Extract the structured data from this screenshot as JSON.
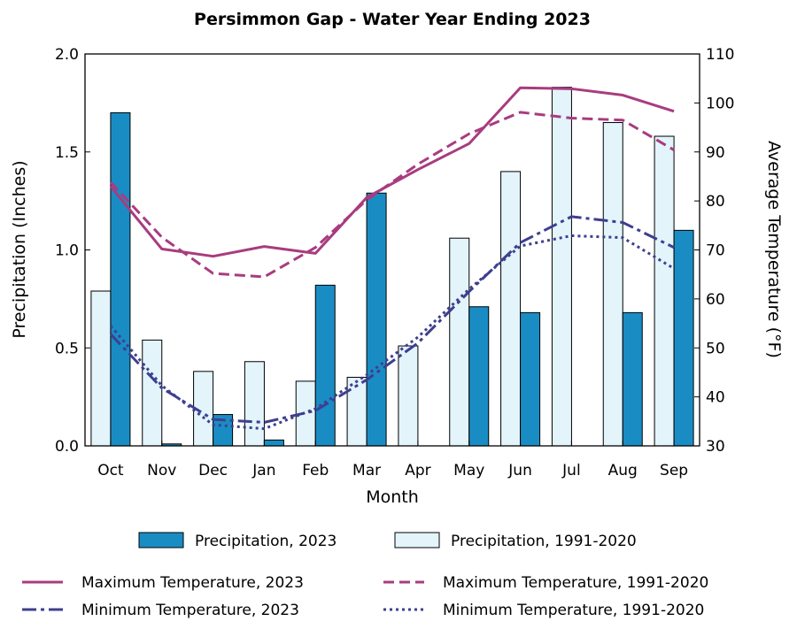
{
  "chart_data": {
    "type": "bar",
    "title": "Persimmon Gap - Water Year Ending 2023",
    "xlabel": "Month",
    "ylabel_left": "Precipitation (Inches)",
    "ylabel_right": "Average Temperature (°F)",
    "categories": [
      "Oct",
      "Nov",
      "Dec",
      "Jan",
      "Feb",
      "Mar",
      "Apr",
      "May",
      "Jun",
      "Jul",
      "Aug",
      "Sep"
    ],
    "ylim_left": [
      0,
      2.0
    ],
    "yticks_left": [
      "0.0",
      "0.5",
      "1.0",
      "1.5",
      "2.0"
    ],
    "ylim_right": [
      30,
      110
    ],
    "yticks_right": [
      "30",
      "40",
      "50",
      "60",
      "70",
      "80",
      "90",
      "100",
      "110"
    ],
    "bar_series": [
      {
        "name": "Precipitation, 1991-2020",
        "color": "#e3f4fb",
        "values": [
          0.79,
          0.54,
          0.38,
          0.43,
          0.33,
          0.35,
          0.51,
          1.06,
          1.4,
          1.83,
          1.65,
          1.58
        ]
      },
      {
        "name": "Precipitation, 2023",
        "color": "#1a8cc4",
        "values": [
          1.7,
          0.01,
          0.16,
          0.03,
          0.82,
          1.29,
          0.0,
          0.71,
          0.68,
          0.0,
          0.68,
          1.1
        ]
      }
    ],
    "line_series": [
      {
        "name": "Maximum Temperature, 2023",
        "color": "#a83c7f",
        "style": "solid",
        "values": [
          83.0,
          70.2,
          68.7,
          70.7,
          69.3,
          80.7,
          86.4,
          91.7,
          103.1,
          102.9,
          101.6,
          98.3
        ]
      },
      {
        "name": "Maximum Temperature, 1991-2020",
        "color": "#a83c7f",
        "style": "dashed",
        "values": [
          83.8,
          72.6,
          65.2,
          64.5,
          70.5,
          80.2,
          87.5,
          93.7,
          98.1,
          96.9,
          96.5,
          90.4
        ]
      },
      {
        "name": "Minimum Temperature, 2023",
        "color": "#3d3f8f",
        "style": "dashdot",
        "values": [
          52.8,
          41.8,
          35.4,
          34.8,
          37.2,
          43.5,
          51.0,
          61.5,
          71.5,
          76.8,
          75.6,
          70.5
        ]
      },
      {
        "name": "Minimum Temperature, 1991-2020",
        "color": "#3d3f8f",
        "style": "dotted",
        "values": [
          54.5,
          42.3,
          34.3,
          33.5,
          37.6,
          44.5,
          52.2,
          62.0,
          70.8,
          72.9,
          72.5,
          66.2
        ]
      }
    ],
    "legend": {
      "placement": "bottom",
      "items": [
        {
          "label": "Precipitation, 2023",
          "kind": "bar",
          "color": "#1a8cc4"
        },
        {
          "label": "Precipitation, 1991-2020",
          "kind": "bar",
          "color": "#e3f4fb"
        },
        {
          "label": "Maximum Temperature, 2023",
          "kind": "line",
          "color": "#a83c7f",
          "style": "solid"
        },
        {
          "label": "Maximum Temperature, 1991-2020",
          "kind": "line",
          "color": "#a83c7f",
          "style": "dashed"
        },
        {
          "label": "Minimum Temperature, 2023",
          "kind": "line",
          "color": "#3d3f8f",
          "style": "dashdot"
        },
        {
          "label": "Minimum Temperature, 1991-2020",
          "kind": "line",
          "color": "#3d3f8f",
          "style": "dotted"
        }
      ]
    },
    "grid": false
  }
}
